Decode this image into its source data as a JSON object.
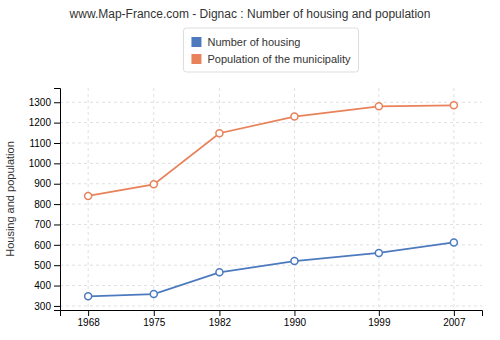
{
  "chart_data": {
    "type": "line",
    "title": "www.Map-France.com - Dignac : Number of housing and population",
    "y_label": "Housing and population",
    "x": [
      1968,
      1975,
      1982,
      1990,
      1999,
      2007
    ],
    "series": [
      {
        "name": "Number of housing",
        "color": "#4d7abf",
        "marker": "circle",
        "values": [
          347,
          358,
          465,
          520,
          560,
          612
        ]
      },
      {
        "name": "Population of the municipality",
        "color": "#e8825a",
        "marker": "circle",
        "values": [
          840,
          897,
          1148,
          1230,
          1280,
          1285
        ]
      }
    ],
    "xlim": [
      1965,
      2010
    ],
    "xticks": [
      1968,
      1975,
      1982,
      1990,
      1999,
      2007
    ],
    "ylim": [
      280,
      1370
    ],
    "yticks": [
      300,
      400,
      500,
      600,
      700,
      800,
      900,
      1000,
      1100,
      1200,
      1300
    ],
    "grid": true,
    "legend": "top"
  }
}
